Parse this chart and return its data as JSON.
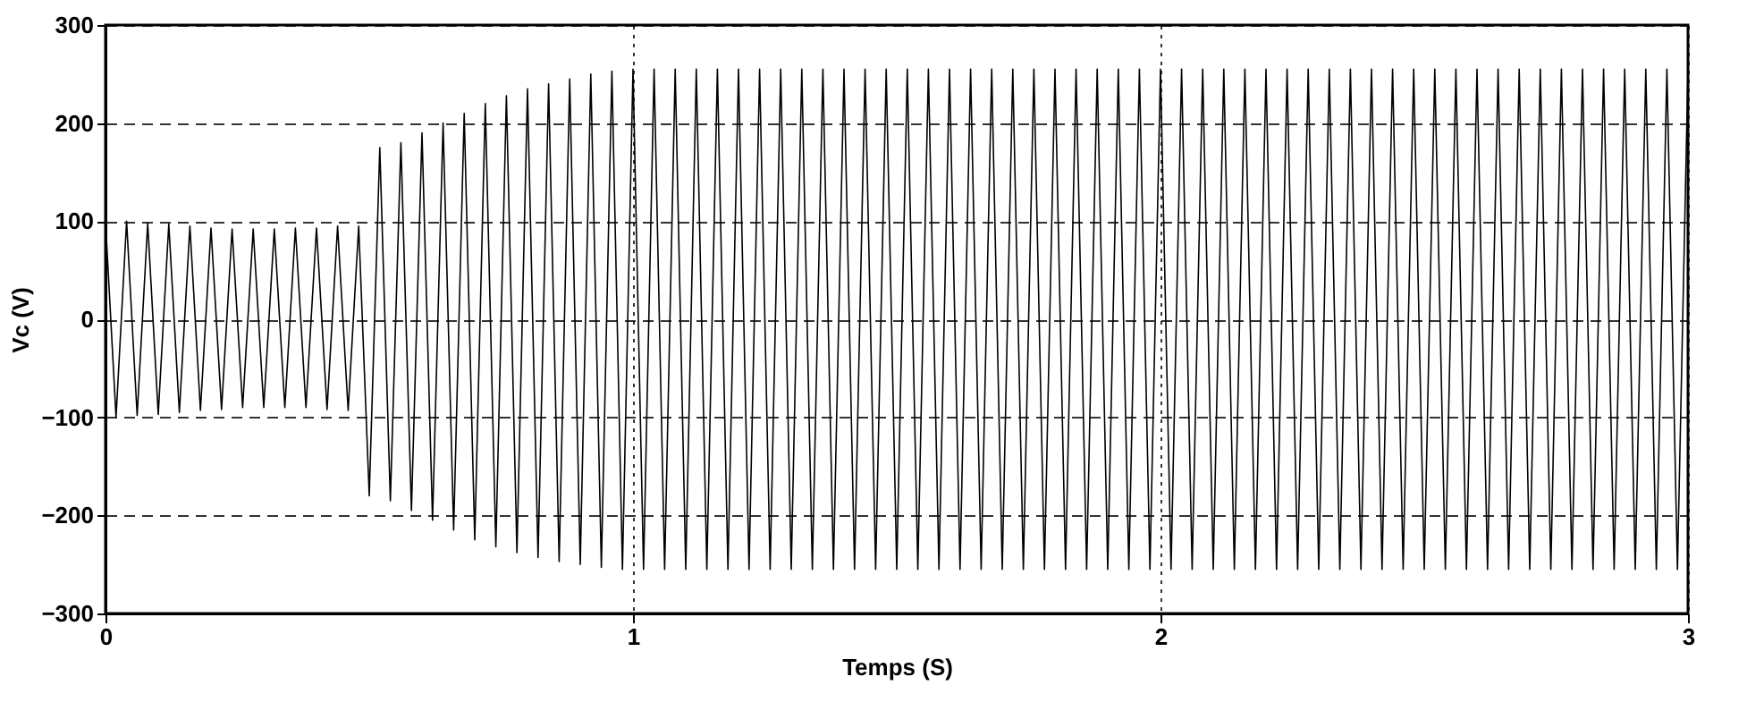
{
  "chart_data": {
    "type": "line",
    "xlabel": "Temps (S)",
    "ylabel": "Vc (V)",
    "xlim": [
      0,
      3
    ],
    "xticks": [
      0,
      1,
      2,
      3
    ],
    "ylim": [
      -300,
      300
    ],
    "yticks": [
      -300,
      -200,
      -100,
      0,
      100,
      200,
      300
    ],
    "grid": true,
    "line_style": "solid",
    "marker": "none",
    "x": [
      0,
      0.02,
      0.04,
      0.06,
      0.08,
      0.1,
      0.12,
      0.14,
      0.16,
      0.18,
      0.2,
      0.22,
      0.24,
      0.26,
      0.28,
      0.3,
      0.32,
      0.34,
      0.36,
      0.38,
      0.4,
      0.42,
      0.44,
      0.46,
      0.48,
      0.5,
      0.52,
      0.54,
      0.56,
      0.58,
      0.6,
      0.62,
      0.64,
      0.66,
      0.68,
      0.7,
      0.72,
      0.74,
      0.76,
      0.78,
      0.8,
      0.82,
      0.84,
      0.86,
      0.88,
      0.9,
      0.92,
      0.94,
      0.96,
      0.98,
      1,
      1.02,
      1.04,
      1.06,
      1.08,
      1.1,
      1.12,
      1.14,
      1.16,
      1.18,
      1.2,
      1.22,
      1.24,
      1.26,
      1.28,
      1.3,
      1.32,
      1.34,
      1.36,
      1.38,
      1.4,
      1.42,
      1.44,
      1.46,
      1.48,
      1.5,
      1.52,
      1.54,
      1.56,
      1.58,
      1.6,
      1.62,
      1.64,
      1.66,
      1.68,
      1.7,
      1.72,
      1.74,
      1.76,
      1.78,
      1.8,
      1.82,
      1.84,
      1.86,
      1.88,
      1.9,
      1.92,
      1.94,
      1.96,
      1.98,
      2,
      2.02,
      2.04,
      2.06,
      2.08,
      2.1,
      2.12,
      2.14,
      2.16,
      2.18,
      2.2,
      2.22,
      2.24,
      2.26,
      2.28,
      2.3,
      2.32,
      2.34,
      2.36,
      2.38,
      2.4,
      2.42,
      2.44,
      2.46,
      2.48,
      2.5,
      2.52,
      2.54,
      2.56,
      2.58,
      2.6,
      2.62,
      2.64,
      2.66,
      2.68,
      2.7,
      2.72,
      2.74,
      2.76,
      2.78,
      2.8,
      2.82,
      2.84,
      2.86,
      2.88,
      2.9,
      2.92,
      2.94,
      2.96,
      2.98,
      3
    ],
    "series": [
      {
        "color": "#000000",
        "values": [
          100,
          -100,
          100,
          -98,
          98,
          -97,
          97,
          -95,
          95,
          -93,
          93,
          -92,
          92,
          -90,
          92,
          -90,
          92,
          -90,
          93,
          -90,
          93,
          -92,
          95,
          -93,
          95,
          -180,
          175,
          -185,
          180,
          -195,
          190,
          -205,
          200,
          -215,
          210,
          -225,
          220,
          -232,
          228,
          -238,
          235,
          -243,
          240,
          -247,
          245,
          -250,
          250,
          -253,
          253,
          -255,
          255,
          -255,
          255,
          -255,
          255,
          -255,
          255,
          -255,
          255,
          -255,
          255,
          -255,
          255,
          -255,
          255,
          -255,
          255,
          -255,
          255,
          -255,
          255,
          -255,
          255,
          -255,
          255,
          -255,
          255,
          -255,
          255,
          -255,
          255,
          -255,
          255,
          -255,
          255,
          -255,
          255,
          -255,
          255,
          -255,
          255,
          -255,
          255,
          -255,
          255,
          -255,
          255,
          -255,
          255,
          -255,
          255,
          -255,
          255,
          -255,
          255,
          -255,
          255,
          -255,
          255,
          -255,
          255,
          -255,
          255,
          -255,
          255,
          -255,
          255,
          -255,
          255,
          -255,
          255,
          -255,
          255,
          -255,
          255,
          -255,
          255,
          -255,
          255,
          -255,
          255,
          -255,
          255,
          -255,
          255,
          -255,
          255,
          -255,
          255,
          -255,
          255,
          -255,
          255,
          -255,
          255,
          -255,
          255,
          -255,
          255,
          -255,
          255
        ]
      }
    ]
  }
}
